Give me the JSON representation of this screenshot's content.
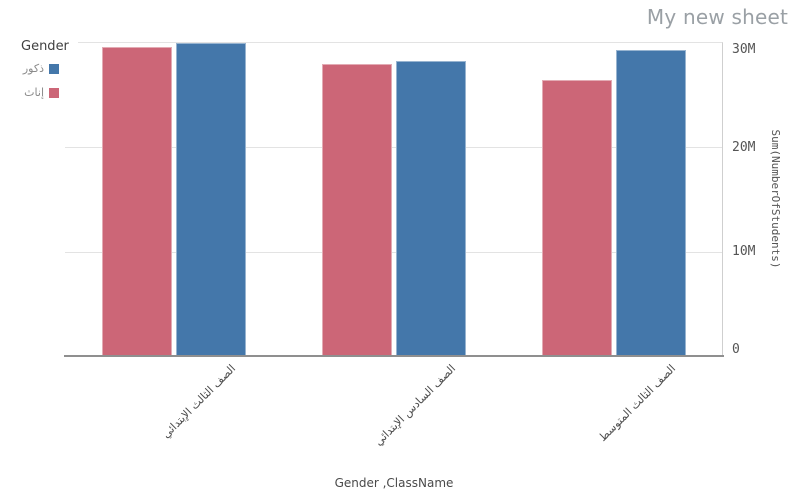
{
  "sheet": {
    "title": "My new sheet"
  },
  "legend": {
    "title": "Gender",
    "items": [
      {
        "label": "ذكور",
        "color": "#4477aa"
      },
      {
        "label": "إناث",
        "color": "#cc6677"
      }
    ]
  },
  "chart_data": {
    "type": "bar",
    "orientation": "vertical",
    "title": "",
    "categories": [
      "الصف الثالث الإبتدائي",
      "الصف السادس الإبتدائي",
      "الصف الثالث المتوسط"
    ],
    "series": [
      {
        "name": "إناث",
        "color": "#cc6677",
        "values": [
          29600000,
          28000000,
          26500000
        ]
      },
      {
        "name": "ذكور",
        "color": "#4477aa",
        "values": [
          30000000,
          28300000,
          29300000
        ]
      }
    ],
    "xlabel": "Gender ,ClassName",
    "ylabel": "Sum(NumberOfStudents)",
    "ylim": [
      0,
      30000000
    ],
    "yticks": [
      {
        "label": "30M",
        "value": 30000000
      },
      {
        "label": "20M",
        "value": 20000000
      },
      {
        "label": "10M",
        "value": 10000000
      },
      {
        "label": "0",
        "value": 0
      }
    ],
    "grid": true,
    "value_axis_position": "right",
    "legend_position": "top-left"
  }
}
